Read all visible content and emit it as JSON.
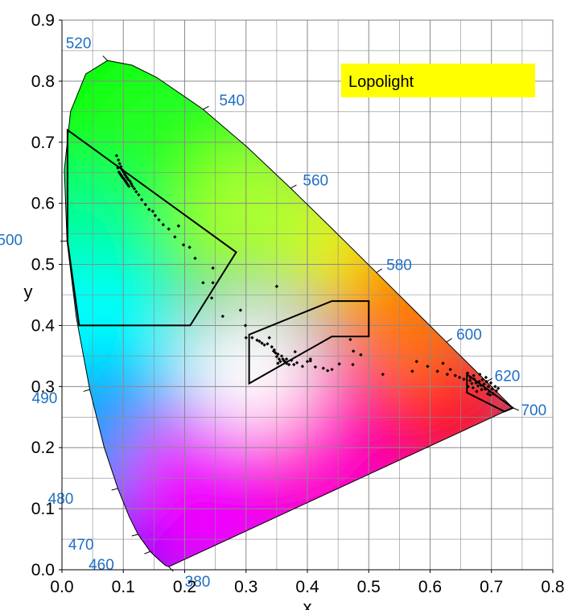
{
  "chart_data": {
    "type": "scatter",
    "title": "",
    "xlabel": "x",
    "ylabel": "y",
    "xlim": [
      0.0,
      0.8
    ],
    "ylim": [
      0.0,
      0.9
    ],
    "x_ticks": [
      "0.0",
      "0.1",
      "0.2",
      "0.3",
      "0.4",
      "0.5",
      "0.6",
      "0.7",
      "0.8"
    ],
    "y_ticks": [
      "0.0",
      "0.1",
      "0.2",
      "0.3",
      "0.4",
      "0.5",
      "0.6",
      "0.7",
      "0.8",
      "0.9"
    ],
    "grid": true,
    "legend": {
      "label": "Lopolight",
      "color": "#ffff00",
      "placement": "top-right"
    },
    "spectral_locus": [
      {
        "nm": 380,
        "x": 0.1741,
        "y": 0.005
      },
      {
        "nm": 430,
        "x": 0.1689,
        "y": 0.0069
      },
      {
        "nm": 450,
        "x": 0.1566,
        "y": 0.0177
      },
      {
        "nm": 460,
        "x": 0.144,
        "y": 0.0297
      },
      {
        "nm": 470,
        "x": 0.1241,
        "y": 0.0578
      },
      {
        "nm": 475,
        "x": 0.1096,
        "y": 0.0868
      },
      {
        "nm": 480,
        "x": 0.0913,
        "y": 0.1327
      },
      {
        "nm": 485,
        "x": 0.0687,
        "y": 0.2007
      },
      {
        "nm": 490,
        "x": 0.0454,
        "y": 0.295
      },
      {
        "nm": 495,
        "x": 0.0235,
        "y": 0.4127
      },
      {
        "nm": 500,
        "x": 0.0082,
        "y": 0.5384
      },
      {
        "nm": 505,
        "x": 0.0039,
        "y": 0.6548
      },
      {
        "nm": 510,
        "x": 0.0139,
        "y": 0.7502
      },
      {
        "nm": 515,
        "x": 0.0389,
        "y": 0.812
      },
      {
        "nm": 520,
        "x": 0.0743,
        "y": 0.8338
      },
      {
        "nm": 525,
        "x": 0.1142,
        "y": 0.8262
      },
      {
        "nm": 530,
        "x": 0.1547,
        "y": 0.8059
      },
      {
        "nm": 540,
        "x": 0.2296,
        "y": 0.7543
      },
      {
        "nm": 550,
        "x": 0.3016,
        "y": 0.6923
      },
      {
        "nm": 560,
        "x": 0.3731,
        "y": 0.6245
      },
      {
        "nm": 570,
        "x": 0.4441,
        "y": 0.5547
      },
      {
        "nm": 580,
        "x": 0.5125,
        "y": 0.4866
      },
      {
        "nm": 590,
        "x": 0.5752,
        "y": 0.4242
      },
      {
        "nm": 600,
        "x": 0.627,
        "y": 0.3725
      },
      {
        "nm": 610,
        "x": 0.6658,
        "y": 0.334
      },
      {
        "nm": 620,
        "x": 0.6915,
        "y": 0.3083
      },
      {
        "nm": 640,
        "x": 0.719,
        "y": 0.2809
      },
      {
        "nm": 700,
        "x": 0.7347,
        "y": 0.2653
      }
    ],
    "wavelength_labels": [
      {
        "text": "520",
        "x": 0.074,
        "y": 0.834
      },
      {
        "text": "540",
        "x": 0.23,
        "y": 0.754
      },
      {
        "text": "560",
        "x": 0.373,
        "y": 0.625
      },
      {
        "text": "580",
        "x": 0.513,
        "y": 0.487
      },
      {
        "text": "600",
        "x": 0.627,
        "y": 0.373
      },
      {
        "text": "620",
        "x": 0.692,
        "y": 0.308
      },
      {
        "text": "700",
        "x": 0.735,
        "y": 0.265
      },
      {
        "text": "500",
        "x": 0.008,
        "y": 0.538
      },
      {
        "text": "490",
        "x": 0.045,
        "y": 0.295
      },
      {
        "text": "480",
        "x": 0.091,
        "y": 0.133
      },
      {
        "text": "470",
        "x": 0.124,
        "y": 0.058
      },
      {
        "text": "460",
        "x": 0.144,
        "y": 0.03
      },
      {
        "text": "380",
        "x": 0.174,
        "y": 0.005
      }
    ],
    "regions": [
      {
        "name": "green",
        "points": [
          [
            0.009,
            0.72
          ],
          [
            0.284,
            0.52
          ],
          [
            0.209,
            0.4
          ],
          [
            0.028,
            0.4
          ],
          [
            0.009,
            0.538
          ]
        ]
      },
      {
        "name": "white",
        "points": [
          [
            0.305,
            0.305
          ],
          [
            0.305,
            0.385
          ],
          [
            0.44,
            0.44
          ],
          [
            0.5,
            0.44
          ],
          [
            0.5,
            0.382
          ],
          [
            0.44,
            0.382
          ],
          [
            0.305,
            0.305
          ]
        ]
      },
      {
        "name": "red",
        "points": [
          [
            0.66,
            0.32
          ],
          [
            0.735,
            0.265
          ],
          [
            0.721,
            0.259
          ],
          [
            0.66,
            0.29
          ]
        ]
      }
    ],
    "series": [
      {
        "values": [
          [
            0.089,
            0.678
          ],
          [
            0.092,
            0.671
          ],
          [
            0.094,
            0.665
          ],
          [
            0.096,
            0.66
          ],
          [
            0.098,
            0.655
          ],
          [
            0.1,
            0.652
          ],
          [
            0.102,
            0.648
          ],
          [
            0.104,
            0.645
          ],
          [
            0.106,
            0.642
          ],
          [
            0.108,
            0.639
          ],
          [
            0.091,
            0.658
          ],
          [
            0.093,
            0.651
          ],
          [
            0.095,
            0.648
          ],
          [
            0.097,
            0.645
          ],
          [
            0.099,
            0.642
          ],
          [
            0.101,
            0.64
          ],
          [
            0.103,
            0.637
          ],
          [
            0.105,
            0.634
          ],
          [
            0.107,
            0.631
          ],
          [
            0.109,
            0.628
          ],
          [
            0.111,
            0.636
          ],
          [
            0.113,
            0.632
          ],
          [
            0.115,
            0.628
          ],
          [
            0.118,
            0.624
          ],
          [
            0.121,
            0.619
          ],
          [
            0.125,
            0.614
          ],
          [
            0.13,
            0.606
          ],
          [
            0.136,
            0.598
          ],
          [
            0.142,
            0.59
          ],
          [
            0.148,
            0.587
          ],
          [
            0.152,
            0.58
          ],
          [
            0.158,
            0.573
          ],
          [
            0.165,
            0.565
          ],
          [
            0.174,
            0.558
          ],
          [
            0.184,
            0.545
          ],
          [
            0.19,
            0.563
          ],
          [
            0.198,
            0.532
          ],
          [
            0.208,
            0.528
          ],
          [
            0.217,
            0.51
          ],
          [
            0.246,
            0.494
          ],
          [
            0.23,
            0.47
          ],
          [
            0.246,
            0.47
          ],
          [
            0.244,
            0.445
          ],
          [
            0.262,
            0.415
          ],
          [
            0.291,
            0.425
          ],
          [
            0.299,
            0.4
          ],
          [
            0.31,
            0.38
          ],
          [
            0.322,
            0.374
          ],
          [
            0.33,
            0.368
          ],
          [
            0.338,
            0.38
          ],
          [
            0.346,
            0.36
          ],
          [
            0.348,
            0.355
          ],
          [
            0.352,
            0.353
          ],
          [
            0.35,
            0.349
          ],
          [
            0.354,
            0.345
          ],
          [
            0.356,
            0.341
          ],
          [
            0.352,
            0.338
          ],
          [
            0.358,
            0.35
          ],
          [
            0.36,
            0.345
          ],
          [
            0.362,
            0.342
          ],
          [
            0.364,
            0.34
          ],
          [
            0.366,
            0.338
          ],
          [
            0.37,
            0.336
          ],
          [
            0.378,
            0.336
          ],
          [
            0.392,
            0.333
          ],
          [
            0.405,
            0.345
          ],
          [
            0.413,
            0.332
          ],
          [
            0.426,
            0.33
          ],
          [
            0.433,
            0.326
          ],
          [
            0.44,
            0.328
          ],
          [
            0.3,
            0.38
          ],
          [
            0.318,
            0.376
          ],
          [
            0.326,
            0.371
          ],
          [
            0.335,
            0.37
          ],
          [
            0.342,
            0.365
          ],
          [
            0.345,
            0.358
          ],
          [
            0.366,
            0.345
          ],
          [
            0.374,
            0.343
          ],
          [
            0.383,
            0.339
          ],
          [
            0.35,
            0.464
          ],
          [
            0.38,
            0.357
          ],
          [
            0.4,
            0.341
          ],
          [
            0.405,
            0.342
          ],
          [
            0.452,
            0.337
          ],
          [
            0.47,
            0.377
          ],
          [
            0.474,
            0.336
          ],
          [
            0.475,
            0.358
          ],
          [
            0.487,
            0.352
          ],
          [
            0.523,
            0.32
          ],
          [
            0.571,
            0.325
          ],
          [
            0.578,
            0.341
          ],
          [
            0.596,
            0.333
          ],
          [
            0.612,
            0.325
          ],
          [
            0.621,
            0.338
          ],
          [
            0.628,
            0.32
          ],
          [
            0.633,
            0.328
          ],
          [
            0.641,
            0.318
          ],
          [
            0.648,
            0.315
          ],
          [
            0.655,
            0.312
          ],
          [
            0.665,
            0.31
          ],
          [
            0.668,
            0.305
          ],
          [
            0.672,
            0.312
          ],
          [
            0.675,
            0.306
          ],
          [
            0.678,
            0.301
          ],
          [
            0.68,
            0.308
          ],
          [
            0.683,
            0.302
          ],
          [
            0.685,
            0.311
          ],
          [
            0.688,
            0.304
          ],
          [
            0.69,
            0.296
          ],
          [
            0.692,
            0.308
          ],
          [
            0.695,
            0.3
          ],
          [
            0.697,
            0.292
          ],
          [
            0.699,
            0.306
          ],
          [
            0.701,
            0.296
          ],
          [
            0.703,
            0.288
          ],
          [
            0.706,
            0.3
          ],
          [
            0.708,
            0.293
          ],
          [
            0.711,
            0.297
          ],
          [
            0.661,
            0.322
          ],
          [
            0.671,
            0.318
          ],
          [
            0.681,
            0.32
          ],
          [
            0.691,
            0.315
          ],
          [
            0.67,
            0.298
          ],
          [
            0.676,
            0.292
          ],
          [
            0.684,
            0.295
          ],
          [
            0.694,
            0.288
          ],
          [
            0.698,
            0.286
          ],
          [
            0.662,
            0.3
          ],
          [
            0.666,
            0.315
          ]
        ]
      }
    ]
  }
}
